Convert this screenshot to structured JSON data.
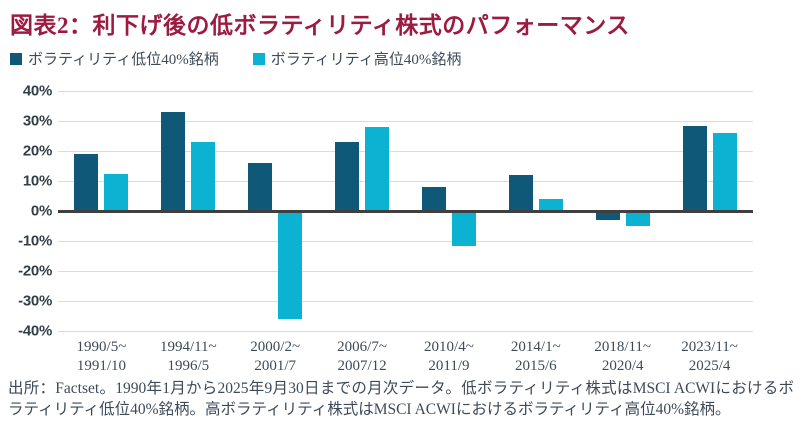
{
  "title": "図表2：利下げ後の低ボラティリティ株式のパフォーマンス",
  "legend": [
    {
      "label": "ボラティリティ低位40%銘柄",
      "color": "#0F5878"
    },
    {
      "label": "ボラティリティ高位40%銘柄",
      "color": "#0CB2D2"
    }
  ],
  "footer": "出所：Factset。1990年1月から2025年9月30日までの月次データ。低ボラティリティ株式はMSCI ACWIにおけるボラティリティ低位40%銘柄。高ボラティリティ株式はMSCI ACWIにおけるボラティリティ高位40%銘柄。",
  "colors": {
    "title": "#9B1C40",
    "grid": "#DBDBDB",
    "baseline": "#3F3F3F",
    "axis_text": "#333E48",
    "label_text": "#3E4A59"
  },
  "chart_data": {
    "type": "bar",
    "title": "図表2：利下げ後の低ボラティリティ株式のパフォーマンス",
    "categories": [
      [
        "1990/5~",
        "1991/10"
      ],
      [
        "1994/11~",
        "1996/5"
      ],
      [
        "2000/2~",
        "2001/7"
      ],
      [
        "2006/7~",
        "2007/12"
      ],
      [
        "2010/4~",
        "2011/9"
      ],
      [
        "2014/1~",
        "2015/6"
      ],
      [
        "2018/11~",
        "2020/4"
      ],
      [
        "2023/11~",
        "2025/4"
      ]
    ],
    "series": [
      {
        "name": "ボラティリティ低位40%銘柄",
        "color": "#0F5878",
        "values": [
          19,
          33,
          16,
          23,
          8,
          12,
          -3,
          28.5
        ]
      },
      {
        "name": "ボラティリティ高位40%銘柄",
        "color": "#0CB2D2",
        "values": [
          12.5,
          23,
          -36,
          28,
          -11.5,
          4,
          -5,
          26
        ]
      }
    ],
    "ylabel": "",
    "xlabel": "",
    "ylim": [
      -40,
      40
    ],
    "ytick_step": 10,
    "ytick_labels": [
      "40%",
      "30%",
      "20%",
      "10%",
      "0%",
      "-10%",
      "-20%",
      "-30%",
      "-40%"
    ],
    "grid": true,
    "legend_position": "top-left"
  }
}
